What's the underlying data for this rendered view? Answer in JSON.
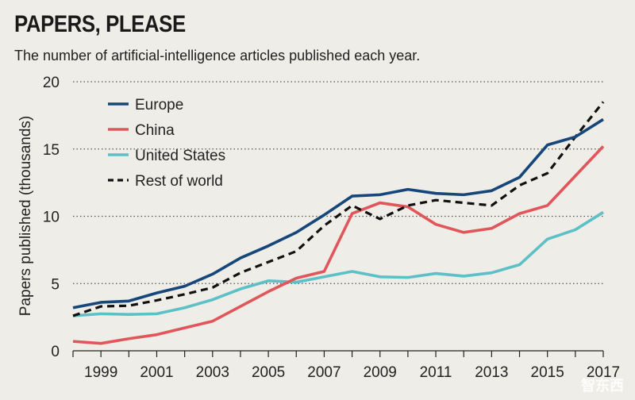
{
  "header": {
    "title": "PAPERS, PLEASE",
    "subtitle": "The number of artificial-intelligence articles published each year."
  },
  "watermark": "智东西",
  "chart_data": {
    "type": "line",
    "title": "PAPERS, PLEASE",
    "subtitle": "The number of artificial-intelligence articles published each year.",
    "xlabel": "",
    "ylabel": "Papers published (thousands)",
    "x": [
      1998,
      1999,
      2000,
      2001,
      2002,
      2003,
      2004,
      2005,
      2006,
      2007,
      2008,
      2009,
      2010,
      2011,
      2012,
      2013,
      2014,
      2015,
      2016,
      2017
    ],
    "xticks": [
      "1999",
      "2001",
      "2003",
      "2005",
      "2007",
      "2009",
      "2011",
      "2013",
      "2015",
      "2017"
    ],
    "xtick_values": [
      1999,
      2001,
      2003,
      2005,
      2007,
      2009,
      2011,
      2013,
      2015,
      2017
    ],
    "yticks": [
      "0",
      "5",
      "10",
      "15",
      "20"
    ],
    "ytick_values": [
      0,
      5,
      10,
      15,
      20
    ],
    "xlim": [
      1998,
      2017
    ],
    "ylim": [
      0,
      20
    ],
    "grid": "horizontal dotted",
    "legend": "top-left",
    "series": [
      {
        "name": "Europe",
        "color": "#16467a",
        "dash": "solid",
        "values": [
          3.2,
          3.6,
          3.7,
          4.3,
          4.8,
          5.7,
          6.9,
          7.8,
          8.8,
          10.1,
          11.5,
          11.6,
          12.0,
          11.7,
          11.6,
          11.9,
          12.9,
          15.3,
          15.9,
          17.2
        ]
      },
      {
        "name": "China",
        "color": "#e0565b",
        "dash": "solid",
        "values": [
          0.7,
          0.55,
          0.9,
          1.2,
          1.7,
          2.2,
          3.3,
          4.4,
          5.4,
          5.9,
          10.2,
          11.0,
          10.7,
          9.4,
          8.8,
          9.1,
          10.2,
          10.8,
          13.0,
          15.2
        ]
      },
      {
        "name": "United States",
        "color": "#5cc0c6",
        "dash": "solid",
        "values": [
          2.6,
          2.75,
          2.7,
          2.75,
          3.2,
          3.8,
          4.6,
          5.2,
          5.1,
          5.5,
          5.9,
          5.5,
          5.45,
          5.75,
          5.55,
          5.8,
          6.4,
          8.3,
          9.0,
          10.3
        ]
      },
      {
        "name": "Rest of world",
        "color": "#111111",
        "dash": "dashed",
        "values": [
          2.6,
          3.3,
          3.35,
          3.75,
          4.2,
          4.7,
          5.8,
          6.6,
          7.4,
          9.3,
          10.8,
          9.8,
          10.8,
          11.2,
          11.0,
          10.8,
          12.3,
          13.2,
          15.9,
          18.5
        ]
      }
    ]
  }
}
